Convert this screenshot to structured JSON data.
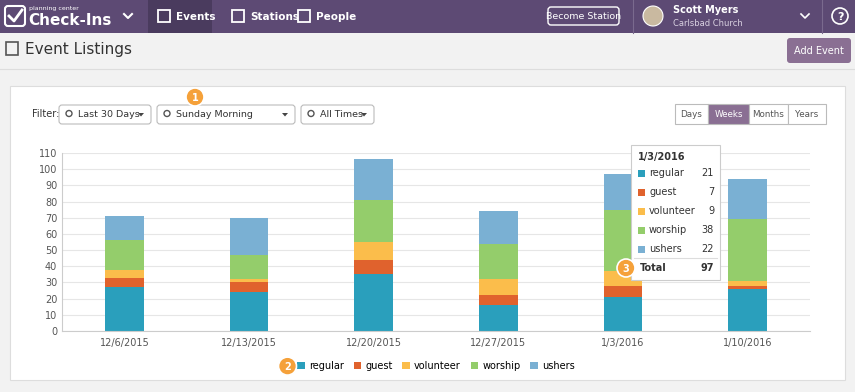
{
  "header": {
    "brand_small": "planning center",
    "brand": "Check-Ins",
    "nav": [
      "Events",
      "Stations",
      "People"
    ],
    "active_nav": "Events",
    "button": "Become Station",
    "user": {
      "name": "Scott Myers",
      "org": "Carlsbad Church"
    },
    "help": "?"
  },
  "page": {
    "title": "Event Listings",
    "button": "Add Event"
  },
  "filters": {
    "label": "Filter:",
    "dropdowns": [
      "Last 30 Days",
      "Sunday Morning",
      "All Times"
    ],
    "ranges": [
      "Days",
      "Weeks",
      "Months",
      "Years"
    ],
    "active_range": "Weeks"
  },
  "callouts": [
    "1",
    "2",
    "3"
  ],
  "chart_data": {
    "type": "bar",
    "stacked": true,
    "categories": [
      "12/6/2015",
      "12/13/2015",
      "12/20/2015",
      "12/27/2015",
      "1/3/2016",
      "1/10/2016"
    ],
    "series": [
      {
        "name": "regular",
        "color": "#2a9fbc",
        "values": [
          27,
          24,
          35,
          16,
          21,
          26
        ]
      },
      {
        "name": "guest",
        "color": "#e0622d",
        "values": [
          6,
          6,
          9,
          6,
          7,
          2
        ]
      },
      {
        "name": "volunteer",
        "color": "#fbbd4b",
        "values": [
          5,
          2,
          11,
          10,
          9,
          3
        ]
      },
      {
        "name": "worship",
        "color": "#94cd6b",
        "values": [
          18,
          15,
          26,
          22,
          38,
          38
        ]
      },
      {
        "name": "ushers",
        "color": "#7ab0d3",
        "values": [
          15,
          23,
          25,
          20,
          22,
          25
        ]
      }
    ],
    "ylim": [
      0,
      110
    ],
    "yticks": [
      0,
      10,
      20,
      30,
      40,
      50,
      60,
      70,
      80,
      90,
      100,
      110
    ],
    "grid": true,
    "legend": "bottom"
  },
  "tooltip": {
    "date": "1/3/2016",
    "total_label": "Total",
    "total": 97
  }
}
